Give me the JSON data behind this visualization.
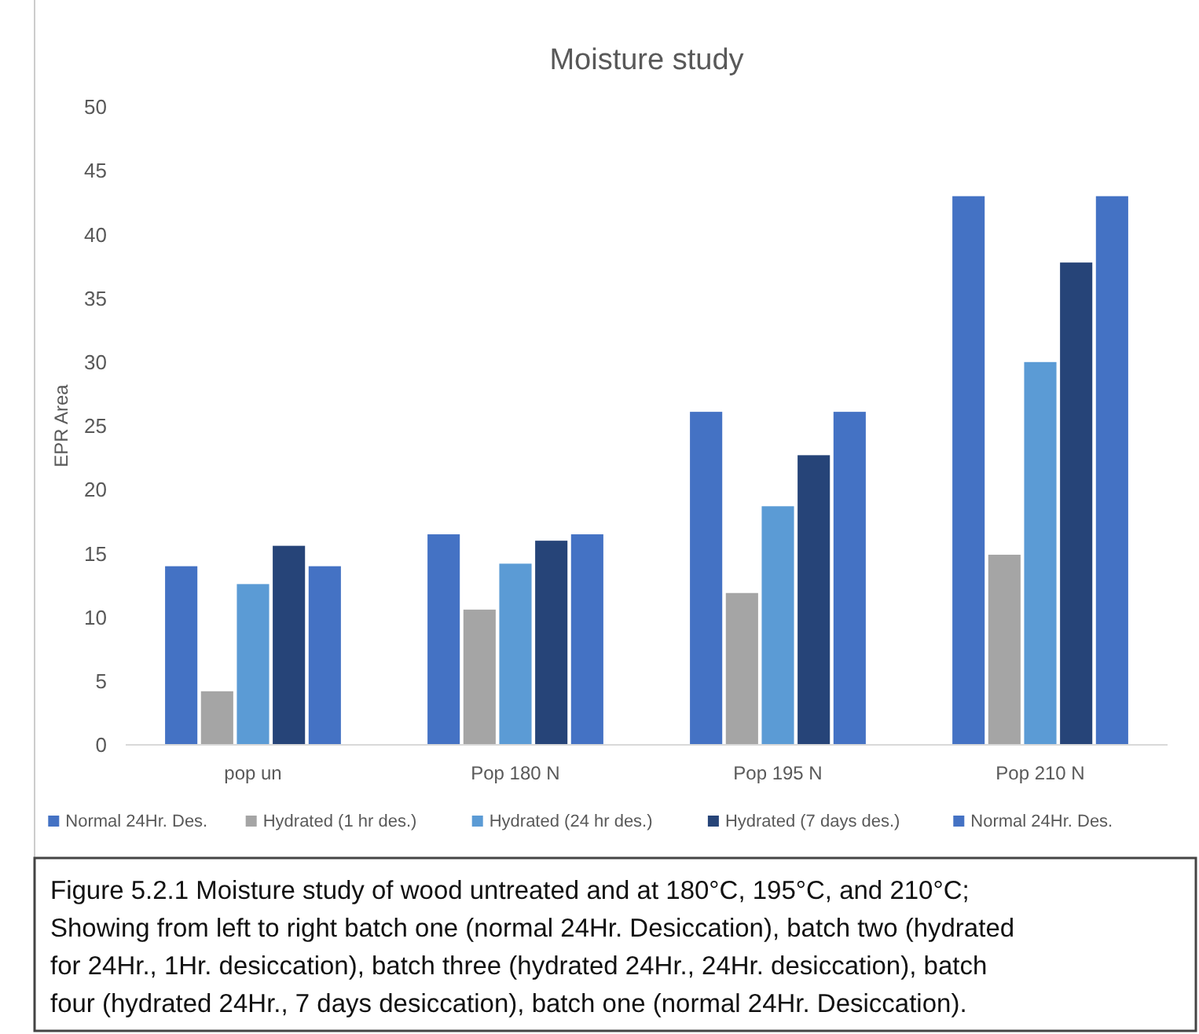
{
  "chart_data": {
    "type": "bar",
    "title": "Moisture study",
    "ylabel": "EPR Area",
    "categories": [
      "pop un",
      "Pop 180 N",
      "Pop 195 N",
      "Pop 210 N"
    ],
    "series": [
      {
        "name": "Normal 24Hr. Des.",
        "color": "#4472c4",
        "values": [
          14,
          16.5,
          26.1,
          43
        ]
      },
      {
        "name": "Hydrated (1 hr des.)",
        "color": "#a5a5a5",
        "values": [
          4.2,
          10.6,
          11.9,
          14.9
        ]
      },
      {
        "name": "Hydrated (24 hr des.)",
        "color": "#5b9bd5",
        "values": [
          12.6,
          14.2,
          18.7,
          30
        ]
      },
      {
        "name": "Hydrated (7 days des.)",
        "color": "#264478",
        "values": [
          15.6,
          16,
          22.7,
          37.8
        ]
      },
      {
        "name": "Normal 24Hr. Des.",
        "color": "#4472c4",
        "values": [
          14,
          16.5,
          26.1,
          43
        ]
      }
    ],
    "ylim": [
      0,
      50
    ],
    "yticks": [
      0,
      5,
      10,
      15,
      20,
      25,
      30,
      35,
      40,
      45,
      50
    ],
    "grid": false,
    "legend": "bottom",
    "annotations": [
      "Figure 5.2.1 Moisture study of wood untreated and at 180°C, 195°C, and 210°C; Showing from left to right batch one (normal 24Hr. Desiccation), batch two (hydrated for 24Hr., 1Hr. desiccation), batch three (hydrated 24Hr., 24Hr. desiccation), batch four (hydrated 24Hr., 7 days desiccation), batch one (normal 24Hr. Desiccation)."
    ]
  }
}
